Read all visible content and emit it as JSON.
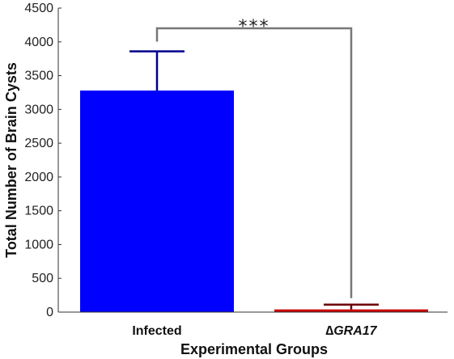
{
  "chart_data": {
    "type": "bar",
    "title": "",
    "xlabel": "Experimental Groups",
    "ylabel": "Total Number of Brain Cysts",
    "ylim": [
      0,
      4500
    ],
    "yticks": [
      0,
      500,
      1000,
      1500,
      2000,
      2500,
      3000,
      3500,
      4000,
      4500
    ],
    "categories": [
      "Infected",
      "∆GRA17"
    ],
    "values": [
      3280,
      40
    ],
    "error_upper": [
      3860,
      110
    ],
    "bar_colors": [
      "#0000ff",
      "#cc0000"
    ],
    "error_colors": [
      "#00008b",
      "#6e0000"
    ],
    "significance": {
      "label": "***",
      "between": [
        0,
        1
      ],
      "color": "#777777"
    },
    "grid": false,
    "legend": "none"
  }
}
